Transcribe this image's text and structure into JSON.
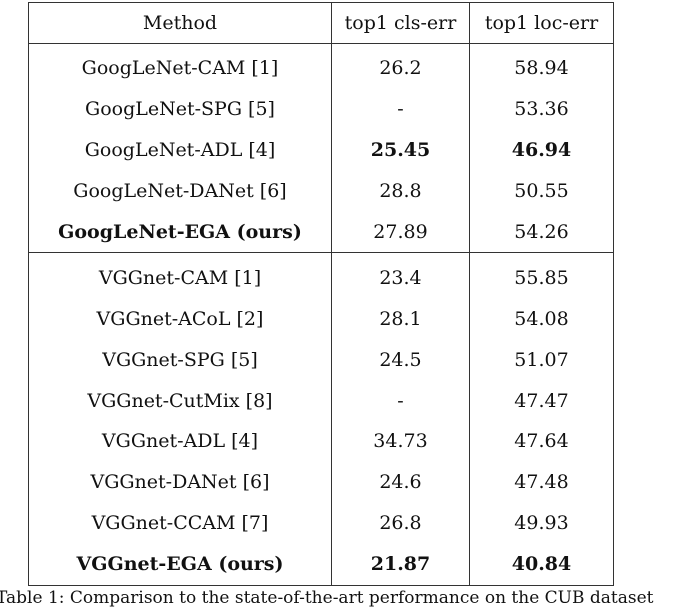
{
  "table": {
    "headers": {
      "method": "Method",
      "cls": "top1 cls-err",
      "loc": "top1 loc-err"
    },
    "googlenet_rows": [
      {
        "method": "GoogLeNet-CAM [1]",
        "cls": "26.2",
        "loc": "58.94"
      },
      {
        "method": "GoogLeNet-SPG [5]",
        "cls": "-",
        "loc": "53.36"
      },
      {
        "method": "GoogLeNet-ADL [4]",
        "cls": "25.45",
        "loc": "46.94"
      },
      {
        "method": "GoogLeNet-DANet [6]",
        "cls": "28.8",
        "loc": "50.55"
      },
      {
        "method": "GoogLeNet-EGA (ours)",
        "cls": "27.89",
        "loc": "54.26"
      }
    ],
    "vggnet_rows": [
      {
        "method": "VGGnet-CAM [1]",
        "cls": "23.4",
        "loc": "55.85"
      },
      {
        "method": "VGGnet-ACoL [2]",
        "cls": "28.1",
        "loc": "54.08"
      },
      {
        "method": "VGGnet-SPG [5]",
        "cls": "24.5",
        "loc": "51.07"
      },
      {
        "method": "VGGnet-CutMix [8]",
        "cls": "-",
        "loc": "47.47"
      },
      {
        "method": "VGGnet-ADL [4]",
        "cls": "34.73",
        "loc": "47.64"
      },
      {
        "method": "VGGnet-DANet [6]",
        "cls": "24.6",
        "loc": "47.48"
      },
      {
        "method": "VGGnet-CCAM [7]",
        "cls": "26.8",
        "loc": "49.93"
      },
      {
        "method": "VGGnet-EGA (ours)",
        "cls": "21.87",
        "loc": "40.84"
      }
    ]
  },
  "caption": "Table 1: Comparison to the state-of-the-art performance on the CUB dataset"
}
